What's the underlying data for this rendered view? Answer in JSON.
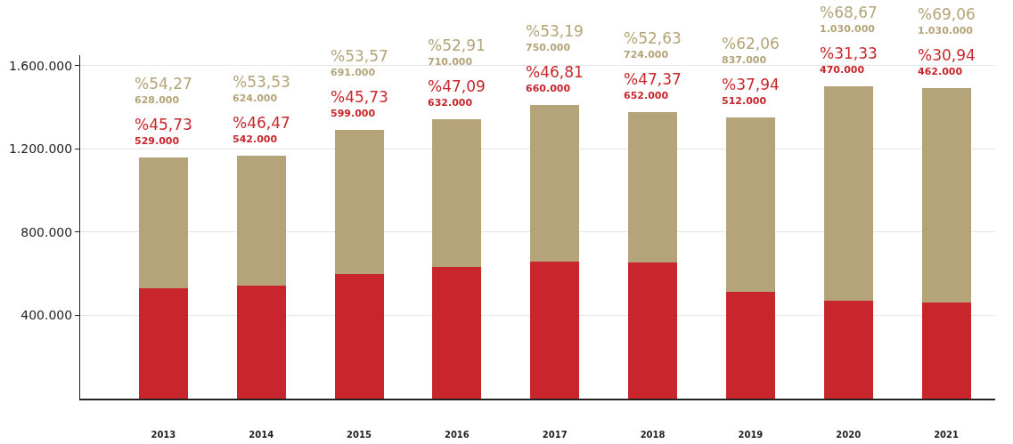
{
  "chart_data": {
    "type": "bar",
    "stacked": true,
    "categories": [
      "2013",
      "2014",
      "2015",
      "2016",
      "2017",
      "2018",
      "2019",
      "2020",
      "2021"
    ],
    "series": [
      {
        "color": "#c8262c",
        "values": [
          529000,
          542000,
          599000,
          632000,
          660000,
          652000,
          512000,
          470000,
          462000
        ]
      },
      {
        "color": "#b5a47a",
        "values": [
          628000,
          624000,
          691000,
          710000,
          750000,
          724000,
          837000,
          1030000,
          1030000
        ]
      }
    ],
    "annotations": [
      "%45,73\n529.000",
      "%54,27\n628.000",
      "%46,47\n542.000",
      "%53,53\n624.000",
      "%45,73\n599.000",
      "%53,57\n691.000",
      "%47,09\n632.000",
      "%52,91\n710.000",
      "%46,81\n660.000",
      "%53,19\n750.000",
      "%47,37\n652.000",
      "%52,63\n724.000",
      "%37,94\n512.000",
      "%62,06\n837.000",
      "%31,33\n470.000",
      "%68,67\n1.030.000",
      "%30,94\n462.000",
      "%69,06\n1.030.000"
    ],
    "ylim": [
      0,
      1650000
    ],
    "yticks": [
      {
        "value": 400000,
        "label": "400.000"
      },
      {
        "value": 800000,
        "label": "800.000"
      },
      {
        "value": 1200000,
        "label": "1.200.000"
      },
      {
        "value": 1600000,
        "label": "1.600.000"
      }
    ],
    "grid": "y"
  }
}
